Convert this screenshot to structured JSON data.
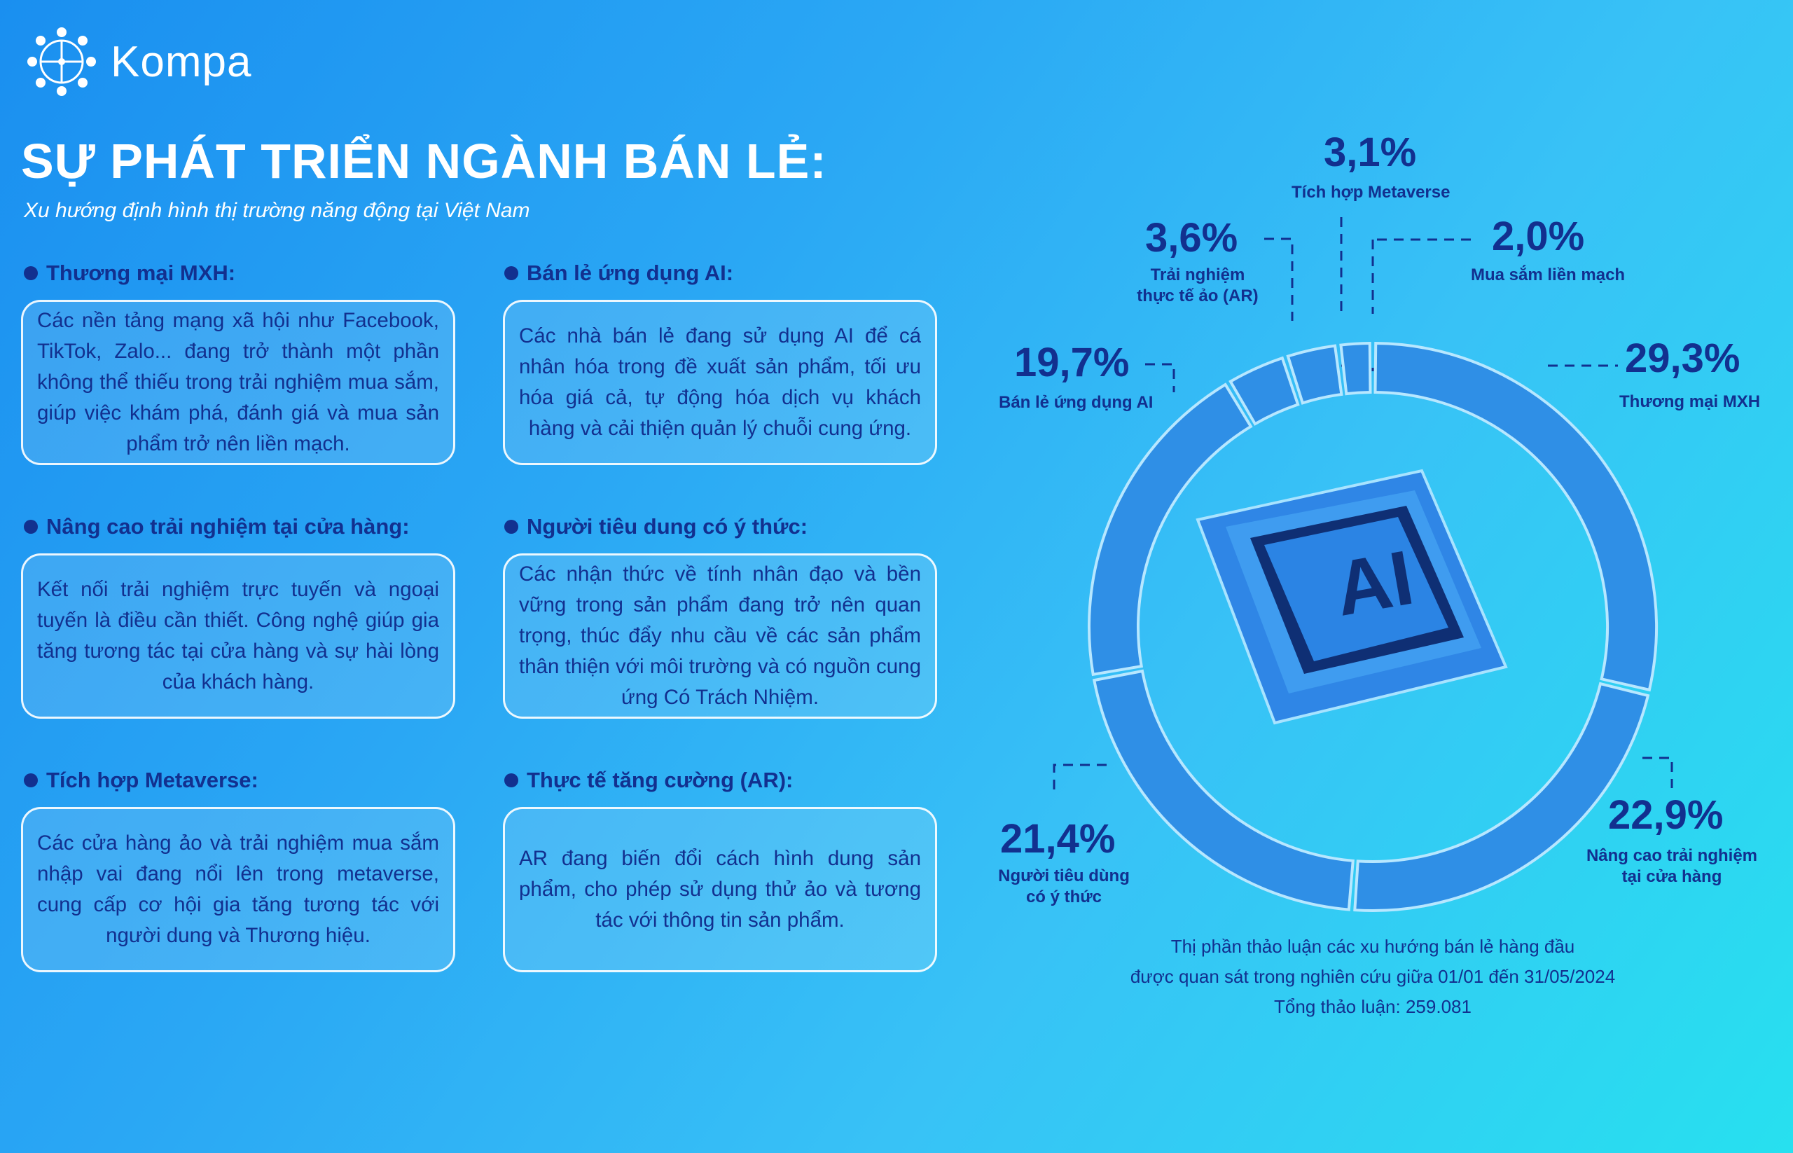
{
  "brand": {
    "name": "Kompa"
  },
  "header": {
    "title": "SỰ PHÁT TRIỂN NGÀNH BÁN LẺ:",
    "subtitle": "Xu hướng định hình thị trường năng động tại Việt Nam"
  },
  "trends": [
    {
      "heading": "Thương mại MXH:",
      "text": "Các nền tảng mạng xã hội như Facebook, TikTok, Zalo... đang trở thành một phần không thể thiếu trong trải nghiệm mua sắm, giúp việc khám phá, đánh giá và mua sản phẩm trở nên liền mạch."
    },
    {
      "heading": "Bán lẻ ứng dụng AI:",
      "text": "Các nhà bán lẻ đang sử dụng AI để cá nhân hóa trong đề xuất sản phẩm, tối ưu hóa giá cả, tự động hóa dịch vụ khách hàng và cải thiện quản lý chuỗi cung ứng."
    },
    {
      "heading": "Nâng cao trải nghiệm tại cửa hàng:",
      "text": "Kết nối trải nghiệm trực tuyến và ngoại tuyến là điều cần thiết. Công nghệ giúp gia tăng tương tác tại cửa hàng và sự hài lòng của khách hàng."
    },
    {
      "heading": "Người tiêu dung có ý thức:",
      "text": "Các nhận thức về tính nhân đạo và bền vững trong sản phẩm đang trở nên quan trọng, thúc đẩy nhu cầu về các sản phẩm thân thiện với môi trường và có nguồn cung ứng Có Trách Nhiệm."
    },
    {
      "heading": "Tích hợp Metaverse:",
      "text": "Các cửa hàng ảo và trải nghiệm mua sắm nhập vai đang nổi lên trong metaverse, cung cấp cơ hội gia tăng tương tác với người dung và Thương hiệu."
    },
    {
      "heading": "Thực tế tăng cường (AR):",
      "text": "AR đang biến đổi cách hình dung sản phẩm, cho phép sử dụng thử ảo và tương tác với thông tin sản phẩm."
    }
  ],
  "chart_data": {
    "type": "pie",
    "variant": "donut",
    "center_label": "AI",
    "slices": [
      {
        "label": "Thương mại MXH",
        "value": 29.3,
        "display": "29,3%"
      },
      {
        "label": "Nâng cao trải nghiệm tại cửa hàng",
        "value": 22.9,
        "display": "22,9%"
      },
      {
        "label": "Người tiêu dùng có ý thức",
        "value": 21.4,
        "display": "21,4%"
      },
      {
        "label": "Bán lẻ ứng dụng AI",
        "value": 19.7,
        "display": "19,7%"
      },
      {
        "label": "Trải nghiệm thực tế ảo (AR)",
        "value": 3.6,
        "display": "3,6%"
      },
      {
        "label": "Tích hợp Metaverse",
        "value": 3.1,
        "display": "3,1%"
      },
      {
        "label": "Mua sắm liền mạch",
        "value": 2.0,
        "display": "2,0%"
      }
    ],
    "colors": {
      "ring": "#2f8fe6",
      "gap": "#b7e7ff",
      "chip": "#3a8ff0",
      "chip_inner": "#123a86"
    },
    "note": [
      "Thị phần thảo luận các xu hướng bán lẻ hàng đầu",
      "được quan sát trong nghiên cứu giữa 01/01 đến 31/05/2024",
      "Tổng thảo luận: 259.081"
    ]
  }
}
